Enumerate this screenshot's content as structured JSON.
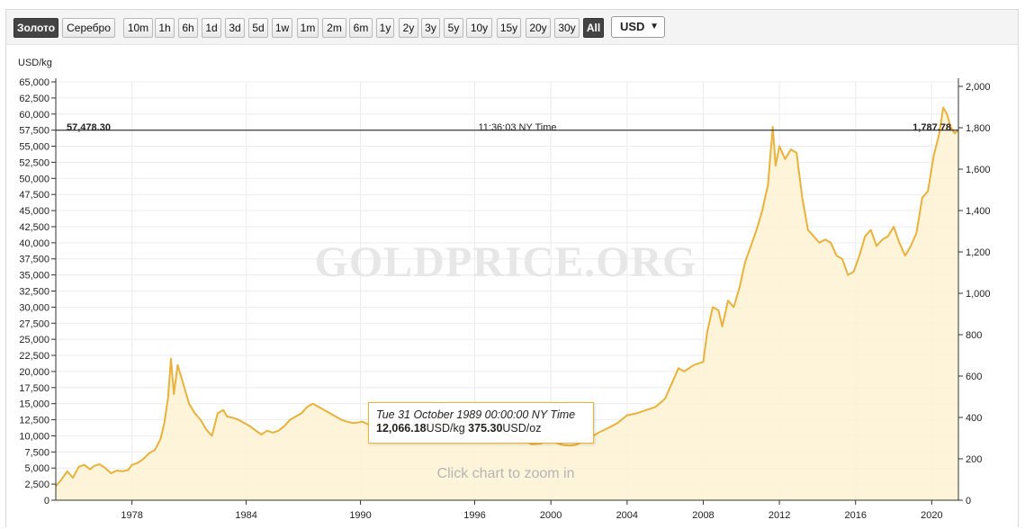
{
  "toolbar": {
    "metals": [
      {
        "label": "Золото",
        "active": true
      },
      {
        "label": "Серебро",
        "active": false
      }
    ],
    "ranges": [
      "10m",
      "1h",
      "6h",
      "1d",
      "3d",
      "5d",
      "1w",
      "1m",
      "2m",
      "6m",
      "1y",
      "2y",
      "3y",
      "5y",
      "10y",
      "15y",
      "20y",
      "30y",
      "All"
    ],
    "active_range": "All",
    "currency": "USD"
  },
  "crosshair": {
    "left_value": "57,478.30",
    "time": "11:36:03 NY Time",
    "right_value": "1,787.78"
  },
  "watermark": "GOLDPRICE.ORG",
  "zoom_hint": "Click chart to zoom in",
  "tooltip": {
    "date": "Tue 31 October 1989 00:00:00 NY Time",
    "kg_value": "12,066.18",
    "kg_unit": "USD/kg",
    "oz_value": "375.30",
    "oz_unit": "USD/oz"
  },
  "colors": {
    "line": "#e8b23c",
    "fill": "#fdf3d6",
    "active_button": "#444444"
  },
  "chart_data": {
    "type": "area",
    "ylabel": "USD/kg",
    "ylim": [
      0,
      65000
    ],
    "y2lim": [
      0,
      2021.7
    ],
    "y_ticks": [
      "0",
      "2,500",
      "5,000",
      "7,500",
      "10,000",
      "12,500",
      "15,000",
      "17,500",
      "20,000",
      "22,500",
      "25,000",
      "27,500",
      "30,000",
      "32,500",
      "35,000",
      "37,500",
      "40,000",
      "42,500",
      "45,000",
      "47,500",
      "50,000",
      "52,500",
      "55,000",
      "57,500",
      "60,000",
      "62,500",
      "65,000"
    ],
    "y2_ticks": [
      "0",
      "200",
      "400",
      "600",
      "800",
      "1,000",
      "1,200",
      "1,400",
      "1,600",
      "1,800",
      "2,000"
    ],
    "x_ticks": [
      "1978",
      "1984",
      "1990",
      "1996",
      "2000",
      "2004",
      "2008",
      "2012",
      "2016",
      "2020"
    ],
    "xlim": [
      1974.0,
      2021.4
    ],
    "grid": true,
    "crosshair_y": 57478.3,
    "series": [
      {
        "x": [
          1974.0,
          1974.3,
          1974.6,
          1974.9,
          1975.2,
          1975.5,
          1975.8,
          1976.0,
          1976.3,
          1976.6,
          1976.9,
          1977.2,
          1977.5,
          1977.8,
          1978.0,
          1978.3,
          1978.6,
          1978.9,
          1979.2,
          1979.5,
          1979.7,
          1979.9,
          1980.05,
          1980.2,
          1980.4,
          1980.6,
          1980.8,
          1981.0,
          1981.3,
          1981.6,
          1981.9,
          1982.2,
          1982.5,
          1982.8,
          1983.0,
          1983.3,
          1983.6,
          1983.9,
          1984.2,
          1984.5,
          1984.8,
          1985.1,
          1985.4,
          1985.7,
          1986.0,
          1986.3,
          1986.6,
          1986.9,
          1987.2,
          1987.5,
          1987.8,
          1988.1,
          1988.4,
          1988.7,
          1989.0,
          1989.3,
          1989.6,
          1989.83,
          1990.1,
          1990.4,
          1990.7,
          1991.0,
          1991.5,
          1992.0,
          1992.5,
          1993.0,
          1993.5,
          1994.0,
          1994.5,
          1995.0,
          1995.5,
          1996.0,
          1996.5,
          1997.0,
          1997.5,
          1998.0,
          1998.5,
          1999.0,
          1999.5,
          1999.8,
          2000.2,
          2000.6,
          2001.0,
          2001.3,
          2001.6,
          2002.0,
          2002.5,
          2003.0,
          2003.5,
          2004.0,
          2004.5,
          2005.0,
          2005.5,
          2006.0,
          2006.4,
          2006.7,
          2007.0,
          2007.5,
          2008.0,
          2008.2,
          2008.5,
          2008.8,
          2009.0,
          2009.3,
          2009.6,
          2009.9,
          2010.2,
          2010.5,
          2010.8,
          2011.1,
          2011.4,
          2011.65,
          2011.8,
          2012.0,
          2012.3,
          2012.6,
          2012.9,
          2013.2,
          2013.5,
          2013.8,
          2014.1,
          2014.4,
          2014.7,
          2015.0,
          2015.3,
          2015.6,
          2015.9,
          2016.2,
          2016.5,
          2016.8,
          2017.1,
          2017.4,
          2017.7,
          2018.0,
          2018.3,
          2018.6,
          2018.9,
          2019.2,
          2019.5,
          2019.8,
          2020.1,
          2020.4,
          2020.6,
          2020.8,
          2021.0,
          2021.2,
          2021.4
        ],
        "y": [
          2200,
          3200,
          4500,
          3500,
          5200,
          5500,
          4800,
          5300,
          5600,
          5000,
          4200,
          4600,
          4500,
          4700,
          5500,
          5800,
          6400,
          7300,
          7800,
          9500,
          12000,
          16000,
          22000,
          16500,
          21000,
          19000,
          17000,
          15000,
          13500,
          12500,
          11000,
          10000,
          13500,
          14000,
          13000,
          12800,
          12500,
          12000,
          11500,
          10800,
          10200,
          10800,
          10500,
          10800,
          11500,
          12500,
          13000,
          13500,
          14500,
          15000,
          14500,
          14000,
          13500,
          13000,
          12500,
          12200,
          12000,
          12066,
          12200,
          11800,
          11500,
          11800,
          11400,
          11000,
          11300,
          11200,
          11800,
          12000,
          12200,
          12300,
          12100,
          12400,
          12200,
          11500,
          10500,
          9800,
          9400,
          8700,
          8800,
          9800,
          9000,
          8600,
          8500,
          8600,
          9000,
          9600,
          10500,
          11200,
          12000,
          13200,
          13500,
          14000,
          14500,
          15800,
          18500,
          20500,
          20000,
          21000,
          21500,
          26000,
          30000,
          29500,
          27000,
          31000,
          30000,
          33000,
          37000,
          39500,
          42000,
          45000,
          49000,
          58000,
          52000,
          55000,
          53000,
          54500,
          54000,
          47000,
          42000,
          41000,
          40000,
          40500,
          40000,
          38000,
          37500,
          35000,
          35500,
          38000,
          41000,
          42000,
          39500,
          40500,
          41000,
          42500,
          40000,
          38000,
          39500,
          41500,
          47000,
          48000,
          53500,
          57000,
          61000,
          60000,
          58000,
          57000,
          57478
        ]
      }
    ]
  }
}
